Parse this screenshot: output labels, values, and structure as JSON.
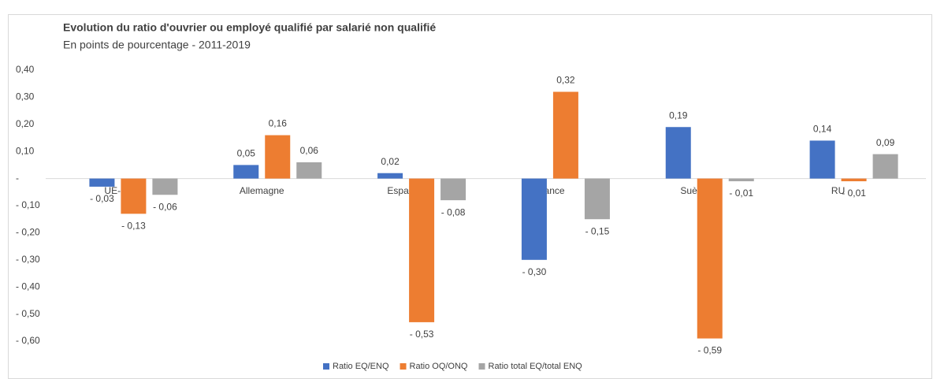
{
  "chart_data": {
    "type": "bar",
    "title": "Evolution du ratio d'ouvrier ou employé qualifié par salarié non qualifié",
    "subtitle": "En points de pourcentage - 2011-2019",
    "categories": [
      "UE-28",
      "Allemagne",
      "Espagne",
      "France",
      "Suède",
      "RU"
    ],
    "series": [
      {
        "name": "Ratio EQ/ENQ",
        "color": "#4472c4",
        "values": [
          -0.03,
          0.05,
          0.02,
          -0.3,
          0.19,
          0.14
        ],
        "value_labels": [
          "- 0,03",
          "0,05",
          "0,02",
          "- 0,30",
          "0,19",
          "0,14"
        ]
      },
      {
        "name": "Ratio OQ/ONQ",
        "color": "#ed7d31",
        "values": [
          -0.13,
          0.16,
          -0.53,
          0.32,
          -0.59,
          -0.01
        ],
        "value_labels": [
          "- 0,13",
          "0,16",
          "- 0,53",
          "0,32",
          "- 0,59",
          "- 0,01"
        ]
      },
      {
        "name": "Ratio total EQ/total ENQ",
        "color": "#a5a5a5",
        "values": [
          -0.06,
          0.06,
          -0.08,
          -0.15,
          -0.01,
          0.09
        ],
        "value_labels": [
          "- 0,06",
          "0,06",
          "- 0,08",
          "- 0,15",
          "- 0,01",
          "0,09"
        ]
      }
    ],
    "ylim": [
      -0.6,
      0.4
    ],
    "yticks": [
      {
        "value": 0.4,
        "label": "0,40"
      },
      {
        "value": 0.3,
        "label": "0,30"
      },
      {
        "value": 0.2,
        "label": "0,20"
      },
      {
        "value": 0.1,
        "label": "0,10"
      },
      {
        "value": 0,
        "label": "-"
      },
      {
        "value": -0.1,
        "label": "- 0,10"
      },
      {
        "value": -0.2,
        "label": "- 0,20"
      },
      {
        "value": -0.3,
        "label": "- 0,30"
      },
      {
        "value": -0.4,
        "label": "- 0,40"
      },
      {
        "value": -0.5,
        "label": "- 0,50"
      },
      {
        "value": -0.6,
        "label": "- 0,60"
      }
    ],
    "grid": false
  }
}
